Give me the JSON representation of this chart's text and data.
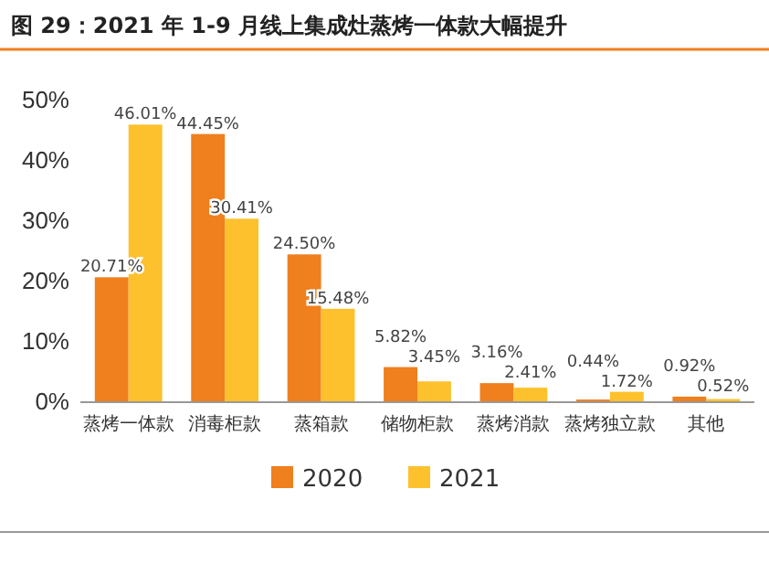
{
  "chart_data": {
    "type": "bar",
    "title": "图 29：2021 年 1-9 月线上集成灶蒸烤一体款大幅提升",
    "categories": [
      "蒸烤一体款",
      "消毒柜款",
      "蒸箱款",
      "储物柜款",
      "蒸烤消款",
      "蒸烤独立款",
      "其他"
    ],
    "series": [
      {
        "name": "2020",
        "color": "#f07f1e",
        "values": [
          20.71,
          44.45,
          24.5,
          5.82,
          3.16,
          0.44,
          0.92
        ],
        "value_labels": [
          "20.71%",
          "44.45%",
          "24.50%",
          "5.82%",
          "3.16%",
          "0.44%",
          "0.92%"
        ]
      },
      {
        "name": "2021",
        "color": "#fcc12d",
        "values": [
          46.01,
          30.41,
          15.48,
          3.45,
          2.41,
          1.72,
          0.52
        ],
        "value_labels": [
          "46.01%",
          "30.41%",
          "15.48%",
          "3.45%",
          "2.41%",
          "1.72%",
          "0.52%"
        ]
      }
    ],
    "ylim": [
      0,
      50
    ],
    "yticks": [
      {
        "value": 0,
        "label": "0%"
      },
      {
        "value": 10,
        "label": "10%"
      },
      {
        "value": 20,
        "label": "20%"
      },
      {
        "value": 30,
        "label": "30%"
      },
      {
        "value": 40,
        "label": "40%"
      },
      {
        "value": 50,
        "label": "50%"
      }
    ],
    "legend": "bottom"
  }
}
